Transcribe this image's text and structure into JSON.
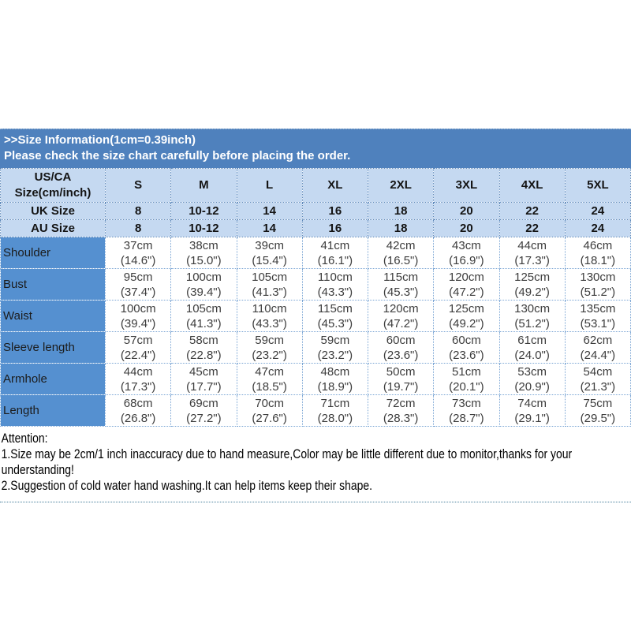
{
  "header": {
    "title": ">>Size Information(1cm=0.39inch)",
    "subtitle": "Please check the size chart carefully before placing the order."
  },
  "table": {
    "corner_label_line1": "US/CA",
    "corner_label_line2": "Size(cm/inch)",
    "size_columns": [
      "S",
      "M",
      "L",
      "XL",
      "2XL",
      "3XL",
      "4XL",
      "5XL"
    ],
    "region_rows": [
      {
        "label": "UK Size",
        "values": [
          "8",
          "10-12",
          "14",
          "16",
          "18",
          "20",
          "22",
          "24"
        ]
      },
      {
        "label": "AU Size",
        "values": [
          "8",
          "10-12",
          "14",
          "16",
          "18",
          "20",
          "22",
          "24"
        ]
      }
    ],
    "measurement_rows": [
      {
        "label": "Shoulder",
        "values": [
          {
            "cm": "37cm",
            "inch": "(14.6\")"
          },
          {
            "cm": "38cm",
            "inch": "(15.0\")"
          },
          {
            "cm": "39cm",
            "inch": "(15.4\")"
          },
          {
            "cm": "41cm",
            "inch": "(16.1\")"
          },
          {
            "cm": "42cm",
            "inch": "(16.5\")"
          },
          {
            "cm": "43cm",
            "inch": "(16.9\")"
          },
          {
            "cm": "44cm",
            "inch": "(17.3\")"
          },
          {
            "cm": "46cm",
            "inch": "(18.1\")"
          }
        ]
      },
      {
        "label": "Bust",
        "values": [
          {
            "cm": "95cm",
            "inch": "(37.4\")"
          },
          {
            "cm": "100cm",
            "inch": "(39.4\")"
          },
          {
            "cm": "105cm",
            "inch": "(41.3\")"
          },
          {
            "cm": "110cm",
            "inch": "(43.3\")"
          },
          {
            "cm": "115cm",
            "inch": "(45.3\")"
          },
          {
            "cm": "120cm",
            "inch": "(47.2\")"
          },
          {
            "cm": "125cm",
            "inch": "(49.2\")"
          },
          {
            "cm": "130cm",
            "inch": "(51.2\")"
          }
        ]
      },
      {
        "label": "Waist",
        "values": [
          {
            "cm": "100cm",
            "inch": "(39.4\")"
          },
          {
            "cm": "105cm",
            "inch": "(41.3\")"
          },
          {
            "cm": "110cm",
            "inch": "(43.3\")"
          },
          {
            "cm": "115cm",
            "inch": "(45.3\")"
          },
          {
            "cm": "120cm",
            "inch": "(47.2\")"
          },
          {
            "cm": "125cm",
            "inch": "(49.2\")"
          },
          {
            "cm": "130cm",
            "inch": "(51.2\")"
          },
          {
            "cm": "135cm",
            "inch": "(53.1\")"
          }
        ]
      },
      {
        "label": "Sleeve length",
        "values": [
          {
            "cm": "57cm",
            "inch": "(22.4\")"
          },
          {
            "cm": "58cm",
            "inch": "(22.8\")"
          },
          {
            "cm": "59cm",
            "inch": "(23.2\")"
          },
          {
            "cm": "59cm",
            "inch": "(23.2\")"
          },
          {
            "cm": "60cm",
            "inch": "(23.6\")"
          },
          {
            "cm": "60cm",
            "inch": "(23.6\")"
          },
          {
            "cm": "61cm",
            "inch": "(24.0\")"
          },
          {
            "cm": "62cm",
            "inch": "(24.4\")"
          }
        ]
      },
      {
        "label": "Armhole",
        "values": [
          {
            "cm": "44cm",
            "inch": "(17.3\")"
          },
          {
            "cm": "45cm",
            "inch": "(17.7\")"
          },
          {
            "cm": "47cm",
            "inch": "(18.5\")"
          },
          {
            "cm": "48cm",
            "inch": "(18.9\")"
          },
          {
            "cm": "50cm",
            "inch": "(19.7\")"
          },
          {
            "cm": "51cm",
            "inch": "(20.1\")"
          },
          {
            "cm": "53cm",
            "inch": "(20.9\")"
          },
          {
            "cm": "54cm",
            "inch": "(21.3\")"
          }
        ]
      },
      {
        "label": "Length",
        "values": [
          {
            "cm": "68cm",
            "inch": "(26.8\")"
          },
          {
            "cm": "69cm",
            "inch": "(27.2\")"
          },
          {
            "cm": "70cm",
            "inch": "(27.6\")"
          },
          {
            "cm": "71cm",
            "inch": "(28.0\")"
          },
          {
            "cm": "72cm",
            "inch": "(28.3\")"
          },
          {
            "cm": "73cm",
            "inch": "(28.7\")"
          },
          {
            "cm": "74cm",
            "inch": "(29.1\")"
          },
          {
            "cm": "75cm",
            "inch": "(29.5\")"
          }
        ]
      }
    ]
  },
  "attention": {
    "lines": [
      "Attention:",
      "1.Size may be 2cm/1 inch inaccuracy due to hand measure,Color may be little different due to monitor,thanks for your",
      "understanding!",
      "2.Suggestion of cold water hand washing.It can help items keep their shape."
    ]
  },
  "colors": {
    "band_blue": "#4f81bd",
    "light_row_blue": "#c5d9f1",
    "label_column_blue": "#5590d0",
    "grid_dot_blue": "#7aa5d4"
  }
}
